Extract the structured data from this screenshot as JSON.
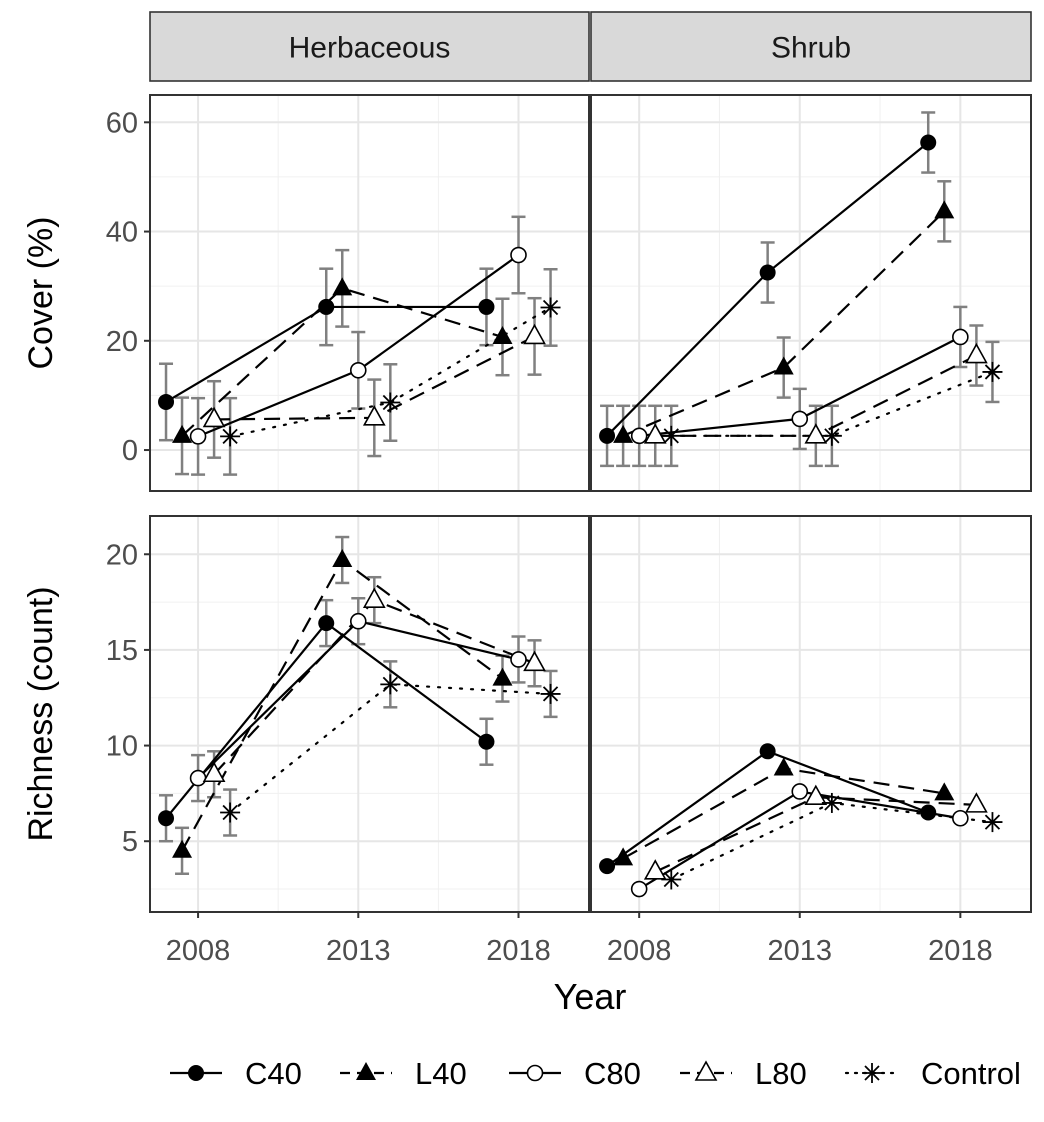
{
  "chart_data": {
    "type": "line",
    "layout": "facet-grid 2x2, shared x axis",
    "xlabel": "Year",
    "x_ticks": [
      2008,
      2013,
      2018
    ],
    "xlim": [
      2006.5,
      2020.2
    ],
    "facet_columns": [
      "Herbaceous",
      "Shrub"
    ],
    "legend": {
      "position": "bottom",
      "entries": [
        {
          "name": "C40",
          "marker": "filled-circle",
          "line": "solid"
        },
        {
          "name": "L40",
          "marker": "filled-triangle",
          "line": "dashed"
        },
        {
          "name": "C80",
          "marker": "open-circle",
          "line": "solid"
        },
        {
          "name": "L80",
          "marker": "open-triangle",
          "line": "dashed"
        },
        {
          "name": "Control",
          "marker": "asterisk",
          "line": "dotted"
        }
      ]
    },
    "error_bar_color": "#808080",
    "panels_rows": [
      {
        "ylabel": "Cover (%)",
        "ylim": [
          -7.5,
          65
        ],
        "y_ticks": [
          0,
          20,
          40,
          60
        ],
        "grid": true,
        "columns": [
          {
            "facet": "Herbaceous",
            "series": [
              {
                "name": "C40",
                "x": [
                  2007,
                  2012,
                  2017
                ],
                "y": [
                  8.8,
                  26.2,
                  26.2
                ],
                "err": [
                  7,
                  7,
                  7
                ]
              },
              {
                "name": "L40",
                "x": [
                  2007.5,
                  2012.5,
                  2017.5
                ],
                "y": [
                  2.6,
                  29.6,
                  20.7
                ],
                "err": [
                  7,
                  7,
                  7
                ]
              },
              {
                "name": "C80",
                "x": [
                  2008,
                  2013,
                  2018
                ],
                "y": [
                  2.5,
                  14.6,
                  35.7
                ],
                "err": [
                  7,
                  7,
                  7
                ]
              },
              {
                "name": "L80",
                "x": [
                  2008.5,
                  2013.5,
                  2018.5
                ],
                "y": [
                  5.6,
                  5.9,
                  20.8
                ],
                "err": [
                  7,
                  7,
                  7
                ]
              },
              {
                "name": "Control",
                "x": [
                  2009,
                  2014,
                  2019
                ],
                "y": [
                  2.5,
                  8.7,
                  26.1
                ],
                "err": [
                  7,
                  7,
                  7
                ]
              }
            ]
          },
          {
            "facet": "Shrub",
            "series": [
              {
                "name": "C40",
                "x": [
                  2007,
                  2012,
                  2017
                ],
                "y": [
                  2.6,
                  32.5,
                  56.3
                ],
                "err": [
                  5.5,
                  5.5,
                  5.5
                ]
              },
              {
                "name": "L40",
                "x": [
                  2007.5,
                  2012.5,
                  2017.5
                ],
                "y": [
                  2.6,
                  15.1,
                  43.7
                ],
                "err": [
                  5.5,
                  5.5,
                  5.5
                ]
              },
              {
                "name": "C80",
                "x": [
                  2008,
                  2013,
                  2018
                ],
                "y": [
                  2.6,
                  5.7,
                  20.7
                ],
                "err": [
                  5.5,
                  5.5,
                  5.5
                ]
              },
              {
                "name": "L80",
                "x": [
                  2008.5,
                  2013.5,
                  2018.5
                ],
                "y": [
                  2.6,
                  2.6,
                  17.3
                ],
                "err": [
                  5.5,
                  5.5,
                  5.5
                ]
              },
              {
                "name": "Control",
                "x": [
                  2009,
                  2014,
                  2019
                ],
                "y": [
                  2.6,
                  2.6,
                  14.3
                ],
                "err": [
                  5.5,
                  5.5,
                  5.5
                ]
              }
            ]
          }
        ]
      },
      {
        "ylabel": "Richness (count)",
        "ylim": [
          1.3,
          22
        ],
        "y_ticks": [
          5,
          10,
          15,
          20
        ],
        "grid": true,
        "columns": [
          {
            "facet": "Herbaceous",
            "series": [
              {
                "name": "C40",
                "x": [
                  2007,
                  2012,
                  2017
                ],
                "y": [
                  6.2,
                  16.4,
                  10.2
                ],
                "err": [
                  1.2,
                  1.2,
                  1.2
                ]
              },
              {
                "name": "L40",
                "x": [
                  2007.5,
                  2012.5,
                  2017.5
                ],
                "y": [
                  4.5,
                  19.7,
                  13.5
                ],
                "err": [
                  1.2,
                  1.2,
                  1.2
                ]
              },
              {
                "name": "C80",
                "x": [
                  2008,
                  2013,
                  2018
                ],
                "y": [
                  8.3,
                  16.5,
                  14.5
                ],
                "err": [
                  1.2,
                  1.2,
                  1.2
                ]
              },
              {
                "name": "L80",
                "x": [
                  2008.5,
                  2013.5,
                  2018.5
                ],
                "y": [
                  8.5,
                  17.6,
                  14.3
                ],
                "err": [
                  1.2,
                  1.2,
                  1.2
                ]
              },
              {
                "name": "Control",
                "x": [
                  2009,
                  2014,
                  2019
                ],
                "y": [
                  6.5,
                  13.2,
                  12.7
                ],
                "err": [
                  1.2,
                  1.2,
                  1.2
                ]
              }
            ]
          },
          {
            "facet": "Shrub",
            "series": [
              {
                "name": "C40",
                "x": [
                  2007,
                  2012,
                  2017
                ],
                "y": [
                  3.7,
                  9.7,
                  6.5
                ],
                "err": [
                  0,
                  0,
                  0
                ]
              },
              {
                "name": "L40",
                "x": [
                  2007.5,
                  2012.5,
                  2017.5
                ],
                "y": [
                  4.1,
                  8.8,
                  7.5
                ],
                "err": [
                  0,
                  0,
                  0
                ]
              },
              {
                "name": "C80",
                "x": [
                  2008,
                  2013,
                  2018
                ],
                "y": [
                  2.5,
                  7.6,
                  6.2
                ],
                "err": [
                  0,
                  0,
                  0
                ]
              },
              {
                "name": "L80",
                "x": [
                  2008.5,
                  2013.5,
                  2018.5
                ],
                "y": [
                  3.4,
                  7.3,
                  6.9
                ],
                "err": [
                  0,
                  0,
                  0
                ]
              },
              {
                "name": "Control",
                "x": [
                  2009,
                  2014,
                  2019
                ],
                "y": [
                  3.0,
                  7.0,
                  6.0
                ],
                "err": [
                  0,
                  0,
                  0
                ]
              }
            ]
          }
        ]
      }
    ]
  }
}
